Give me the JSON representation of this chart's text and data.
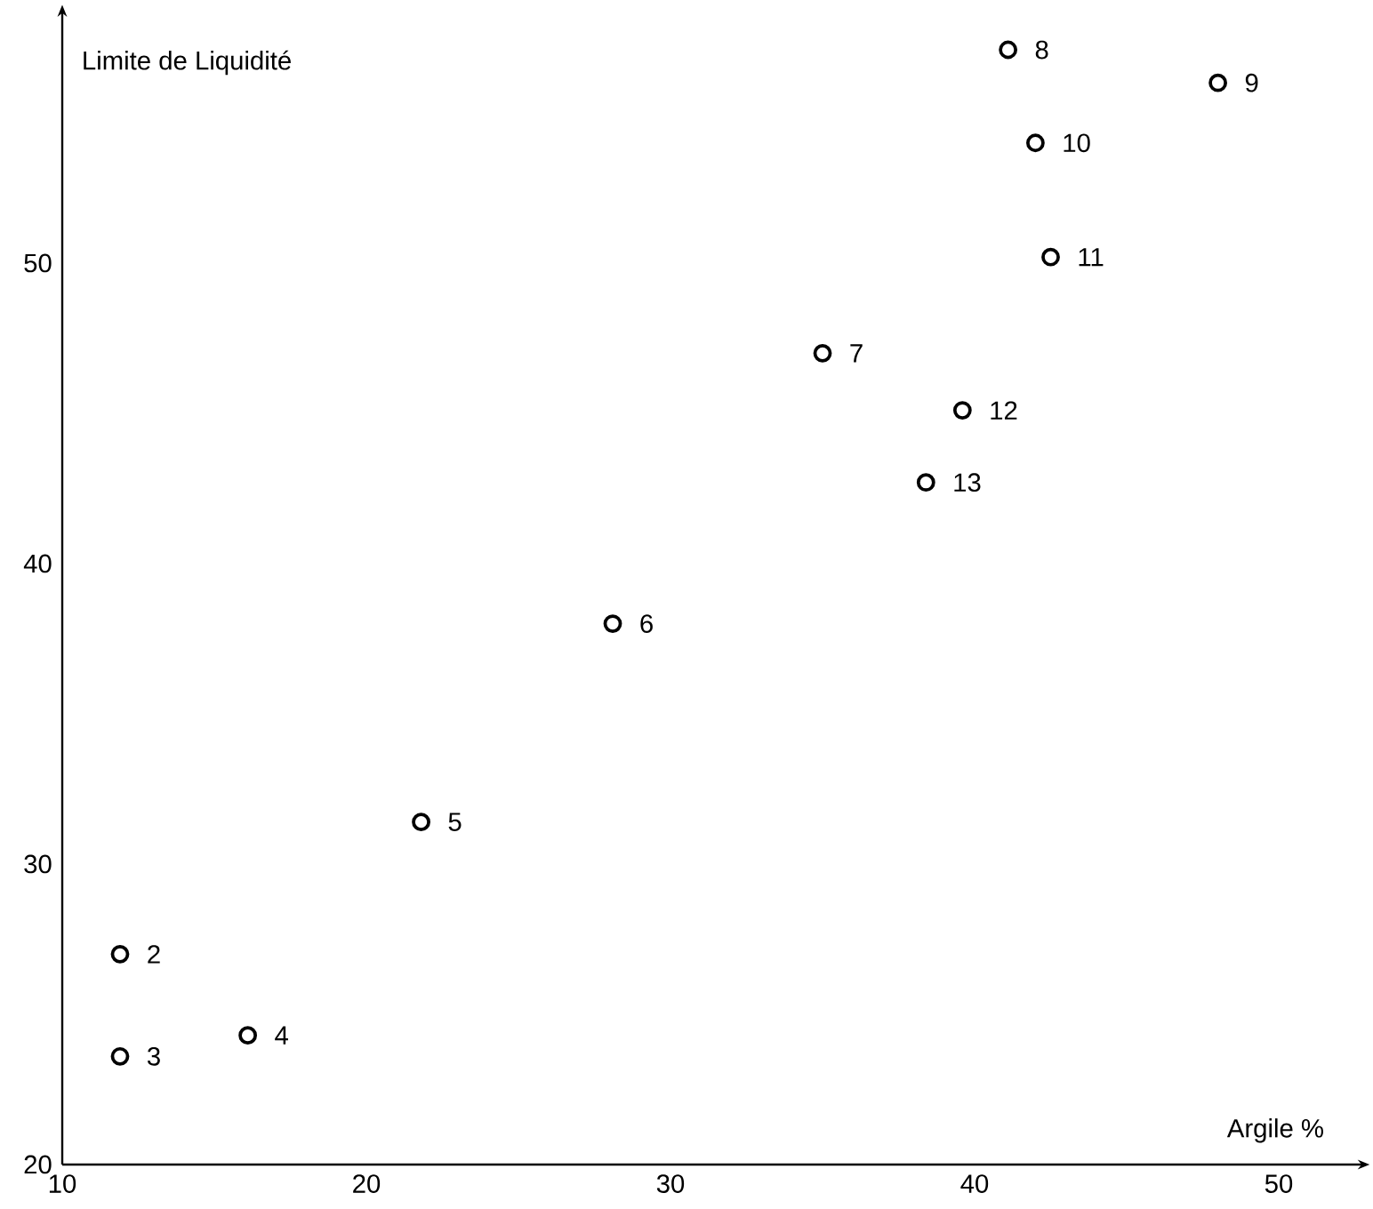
{
  "chart_data": {
    "type": "scatter",
    "xlabel": "Argile %",
    "ylabel": "Limite de Liquidité",
    "x": [
      11.9,
      11.9,
      16.1,
      21.8,
      28.1,
      35.0,
      41.1,
      48.0,
      42.0,
      42.5,
      39.6,
      38.4
    ],
    "series": [
      {
        "color": "#000000",
        "values": [
          27.0,
          23.6,
          24.3,
          31.4,
          38.0,
          47.0,
          57.1,
          56.0,
          54.0,
          50.2,
          45.1,
          42.7
        ]
      }
    ],
    "xlim": [
      10,
      52.6
    ],
    "ylim": [
      20,
      58.2
    ],
    "xticks": [
      10,
      20,
      30,
      40,
      50
    ],
    "yticks": [
      20,
      30,
      40,
      50
    ],
    "marker": "circle",
    "grid": false,
    "annotations": [
      {
        "text": "2",
        "x": 11.9,
        "y": 27.0
      },
      {
        "text": "3",
        "x": 11.9,
        "y": 23.6
      },
      {
        "text": "4",
        "x": 16.1,
        "y": 24.3
      },
      {
        "text": "5",
        "x": 21.8,
        "y": 31.4
      },
      {
        "text": "6",
        "x": 28.1,
        "y": 38.0
      },
      {
        "text": "7",
        "x": 35.0,
        "y": 47.0
      },
      {
        "text": "8",
        "x": 41.1,
        "y": 57.1
      },
      {
        "text": "9",
        "x": 48.0,
        "y": 56.0
      },
      {
        "text": "10",
        "x": 42.0,
        "y": 54.0
      },
      {
        "text": "11",
        "x": 42.5,
        "y": 50.2
      },
      {
        "text": "12",
        "x": 39.6,
        "y": 45.1
      },
      {
        "text": "13",
        "x": 38.4,
        "y": 42.7
      }
    ]
  }
}
